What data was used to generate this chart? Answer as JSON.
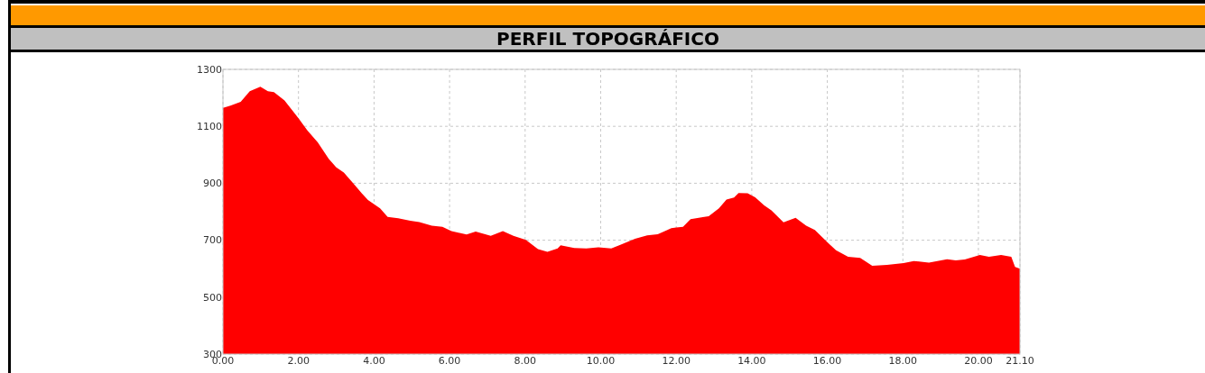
{
  "chart_data": {
    "type": "area",
    "title": "PERFIL TOPOGRÁFICO",
    "x": [
      0,
      0.14,
      0.47,
      0.71,
      0.99,
      1.19,
      1.35,
      1.63,
      2.0,
      2.23,
      2.51,
      2.8,
      3.0,
      3.2,
      3.44,
      3.68,
      3.84,
      4.16,
      4.36,
      4.64,
      4.96,
      5.2,
      5.53,
      5.81,
      6.05,
      6.45,
      6.69,
      7.09,
      7.41,
      7.69,
      8.02,
      8.34,
      8.59,
      8.86,
      8.94,
      9.3,
      9.62,
      9.94,
      10.28,
      10.52,
      10.91,
      11.23,
      11.51,
      11.87,
      12.0,
      12.18,
      12.38,
      12.74,
      12.86,
      13.13,
      13.33,
      13.53,
      13.65,
      13.89,
      14.09,
      14.33,
      14.52,
      14.84,
      15.16,
      15.44,
      15.67,
      16.03,
      16.23,
      16.55,
      16.87,
      17.19,
      17.58,
      18.02,
      18.29,
      18.69,
      19.17,
      19.4,
      19.64,
      20.04,
      20.28,
      20.6,
      20.87,
      20.97,
      21.1
    ],
    "series": [
      {
        "color": "#ff0000",
        "values": [
          1165,
          1170,
          1186,
          1223,
          1239,
          1223,
          1220,
          1191,
          1128,
          1086,
          1044,
          986,
          956,
          938,
          901,
          864,
          841,
          812,
          782,
          777,
          768,
          764,
          751,
          747,
          732,
          720,
          730,
          715,
          732,
          715,
          701,
          669,
          659,
          671,
          682,
          673,
          671,
          675,
          671,
          684,
          705,
          717,
          721,
          742,
          745,
          747,
          774,
          782,
          784,
          812,
          843,
          850,
          866,
          865,
          851,
          822,
          805,
          763,
          779,
          751,
          736,
          689,
          665,
          642,
          638,
          610,
          613,
          620,
          627,
          621,
          633,
          629,
          632,
          648,
          642,
          648,
          642,
          606,
          600
        ]
      }
    ],
    "xlim": [
      0,
      21.1
    ],
    "xticks": [
      {
        "value": 0,
        "label": "0.00"
      },
      {
        "value": 2,
        "label": "2.00"
      },
      {
        "value": 4,
        "label": "4.00"
      },
      {
        "value": 6,
        "label": "6.00"
      },
      {
        "value": 8,
        "label": "8.00"
      },
      {
        "value": 10,
        "label": "10.00"
      },
      {
        "value": 12,
        "label": "12.00"
      },
      {
        "value": 14,
        "label": "14.00"
      },
      {
        "value": 16,
        "label": "16.00"
      },
      {
        "value": 18,
        "label": "18.00"
      },
      {
        "value": 20,
        "label": "20.00"
      },
      {
        "value": 21.1,
        "label": "21.10"
      }
    ],
    "ylim": [
      300,
      1300
    ],
    "yticks": [
      300,
      500,
      700,
      900,
      1100,
      1300
    ],
    "grid": true
  }
}
